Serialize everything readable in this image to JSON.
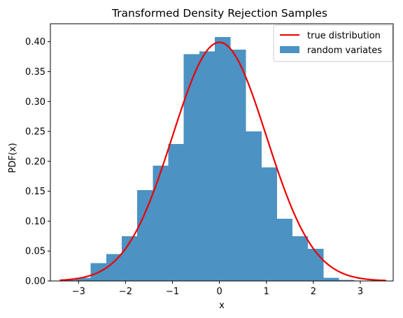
{
  "chart_data": {
    "type": "histogram",
    "title": "Transformed Density Rejection Samples",
    "xlabel": "x",
    "ylabel": "PDF(x)",
    "xlim": [
      -3.6,
      3.7
    ],
    "ylim": [
      0.0,
      0.43
    ],
    "xticks": [
      -3,
      -2,
      -1,
      0,
      1,
      2,
      3
    ],
    "xtick_labels": [
      "−3",
      "−2",
      "−1",
      "0",
      "1",
      "2",
      "3"
    ],
    "yticks": [
      0.0,
      0.05,
      0.1,
      0.15,
      0.2,
      0.25,
      0.3,
      0.35,
      0.4
    ],
    "ytick_labels": [
      "0.00",
      "0.05",
      "0.10",
      "0.15",
      "0.20",
      "0.25",
      "0.30",
      "0.35",
      "0.40"
    ],
    "grid": false,
    "legend_position": "top-right",
    "series": [
      {
        "name": "random variates",
        "kind": "histogram",
        "color": "#4c92c3",
        "bin_edges": [
          -3.4,
          -3.07,
          -2.74,
          -2.41,
          -2.08,
          -1.75,
          -1.42,
          -1.09,
          -0.76,
          -0.43,
          -0.1,
          0.23,
          0.56,
          0.89,
          1.22,
          1.55,
          1.88,
          2.21,
          2.54,
          2.87
        ],
        "values": [
          0.002,
          0.005,
          0.03,
          0.045,
          0.075,
          0.152,
          0.193,
          0.229,
          0.379,
          0.384,
          0.408,
          0.387,
          0.25,
          0.19,
          0.104,
          0.075,
          0.054,
          0.005,
          0.002
        ]
      },
      {
        "name": "true distribution",
        "kind": "line",
        "color": "#ee0000",
        "x_range": [
          -3.4,
          3.55
        ],
        "function": "standard normal pdf"
      }
    ]
  }
}
